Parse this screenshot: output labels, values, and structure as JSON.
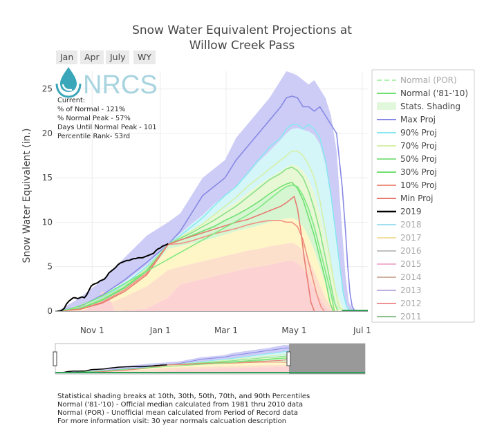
{
  "title_line1": "Snow Water Equivalent Projections at",
  "title_line2": "Willow Creek Pass",
  "range_buttons": [
    "Jan",
    "Apr",
    "July",
    "WY"
  ],
  "logo_text": "NRCS",
  "current_stats": {
    "header": "Current:",
    "pct_normal": "% of Normal - 121%",
    "pct_normal_peak": "% Normal Peak - 57%",
    "days_until_peak": "Days Until Normal Peak - 101",
    "percentile_rank": "Percentile Rank- 53rd"
  },
  "footnotes": [
    "Statistical shading breaks at 10th, 30th, 50th, 70th, and 90th Percentiles",
    "Normal ('81-'10) - Official median calculated from 1981 thru 2010 data",
    "Normal (POR) - Unofficial mean calculated from Period of Record data",
    "For more information visit: 30 year normals calcuation description"
  ],
  "colors": {
    "max": "#8888e6",
    "p90": "#88e8f0",
    "p70": "#d6f0a8",
    "p50": "#88e088",
    "p30": "#70e070",
    "p10": "#f09080",
    "min": "#e87a70",
    "y2019": "#000000",
    "shade_top": "#ccccf6",
    "shade_90": "#d4f6f8",
    "shade_70": "#e8f8d4",
    "shade_50": "#d6f6d2",
    "shade_30": "#fff6c8",
    "shade_10": "#fde0cc",
    "shade_min": "#fcd2d2"
  },
  "chart_data": {
    "type": "line",
    "title": "Snow Water Equivalent Projections at Willow Creek Pass",
    "xlabel": "",
    "ylabel": "Snow Water Equivalent (in.)",
    "x_unit": "days since Oct 1 (water year day)",
    "x_ticks": [
      {
        "day": 31,
        "label": "Nov 1"
      },
      {
        "day": 92,
        "label": "Jan 1"
      },
      {
        "day": 151,
        "label": "Mar 1"
      },
      {
        "day": 212,
        "label": "May 1"
      },
      {
        "day": 273,
        "label": "Jul 1"
      }
    ],
    "y_ticks": [
      0,
      5,
      10,
      15,
      20,
      25
    ],
    "xlim": [
      -2,
      278
    ],
    "ylim": [
      0,
      27
    ],
    "grid": true,
    "legend_position": "right",
    "legend": [
      "Normal (POR)",
      "Normal ('81-'10)",
      "Stats. Shading",
      "Max Proj",
      "90% Proj",
      "70% Proj",
      "50% Proj",
      "30% Proj",
      "10% Proj",
      "Min Proj",
      "2019",
      "2018",
      "2017",
      "2016",
      "2015",
      "2014",
      "2013",
      "2012",
      "2011"
    ],
    "legend_colors": [
      "#b0f0b0",
      "#70e070",
      "#e0f8e0",
      "#8888e6",
      "#88e8f0",
      "#d6f0a8",
      "#88e088",
      "#70e070",
      "#f09080",
      "#e87a70",
      "#000000",
      "#a0e0f0",
      "#f0e0a0",
      "#c0c0c0",
      "#f0b0d0",
      "#d0b0a0",
      "#c0b0e0",
      "#f09090",
      "#90c090"
    ],
    "legend_dimmed": [
      true,
      false,
      false,
      false,
      false,
      false,
      false,
      false,
      false,
      false,
      false,
      true,
      true,
      true,
      true,
      true,
      true,
      true,
      true
    ],
    "series": [
      {
        "name": "Max Proj",
        "x": [
          0,
          20,
          40,
          60,
          80,
          99,
          110,
          120,
          130,
          140,
          150,
          160,
          170,
          180,
          190,
          200,
          205,
          210,
          215,
          220,
          225,
          230,
          235,
          240,
          245,
          250,
          255,
          258,
          260,
          262,
          264,
          266,
          268,
          270
        ],
        "y": [
          0,
          0.5,
          1.8,
          3.5,
          5.5,
          7.5,
          9,
          11,
          13,
          14,
          15,
          17,
          18.5,
          20,
          21.5,
          23,
          24,
          24.2,
          24,
          23,
          23,
          22.5,
          23,
          22,
          21,
          20,
          14,
          9,
          5,
          2,
          0.5,
          0.1,
          0,
          0
        ]
      },
      {
        "name": "90% Proj",
        "x": [
          0,
          20,
          40,
          60,
          80,
          99,
          110,
          120,
          130,
          140,
          150,
          160,
          170,
          180,
          190,
          200,
          205,
          210,
          215,
          220,
          225,
          230,
          235,
          240,
          245,
          250,
          253,
          256,
          259,
          262,
          266
        ],
        "y": [
          0,
          0.4,
          1.5,
          3,
          5,
          7.5,
          8.5,
          9.5,
          10.5,
          11.8,
          13,
          14,
          15.5,
          17,
          18.5,
          19.5,
          20.5,
          21,
          21,
          20.5,
          21,
          20.5,
          19.5,
          17,
          13,
          8,
          5,
          2,
          0.5,
          0,
          0
        ]
      },
      {
        "name": "70% Proj",
        "x": [
          0,
          20,
          40,
          60,
          80,
          99,
          110,
          120,
          130,
          140,
          150,
          160,
          170,
          180,
          190,
          200,
          205,
          210,
          215,
          220,
          225,
          230,
          235,
          240,
          244,
          248,
          252,
          256
        ],
        "y": [
          0,
          0.4,
          1.4,
          2.8,
          4.8,
          7.5,
          8.3,
          9,
          9.8,
          10.8,
          11.8,
          12.8,
          14,
          15,
          16,
          17,
          17.5,
          18,
          18,
          17.5,
          16.5,
          15,
          12.5,
          9,
          6,
          3,
          0.5,
          0
        ]
      },
      {
        "name": "50% Proj",
        "x": [
          0,
          20,
          40,
          60,
          80,
          99,
          110,
          120,
          130,
          140,
          150,
          160,
          170,
          180,
          190,
          200,
          205,
          210,
          215,
          220,
          225,
          230,
          235,
          240,
          244,
          248,
          251
        ],
        "y": [
          0,
          0.3,
          1.3,
          2.7,
          4.6,
          7.5,
          8.2,
          8.8,
          9.5,
          10.2,
          11,
          11.8,
          12.8,
          13.8,
          14.8,
          15.5,
          16,
          16.2,
          15.8,
          15,
          13.5,
          11.5,
          9,
          6,
          3.5,
          1,
          0
        ]
      },
      {
        "name": "30% Proj",
        "x": [
          0,
          20,
          40,
          60,
          80,
          99,
          110,
          120,
          130,
          140,
          150,
          160,
          170,
          180,
          190,
          200,
          205,
          210,
          215,
          220,
          225,
          230,
          235,
          240,
          244,
          247
        ],
        "y": [
          0,
          0.3,
          1.2,
          2.6,
          4.5,
          7.5,
          8,
          8.5,
          9,
          9.5,
          10.2,
          10.8,
          11.5,
          12.3,
          13.2,
          14,
          14.3,
          14.5,
          13.8,
          12.5,
          10.5,
          8.5,
          6,
          3.5,
          1,
          0
        ]
      },
      {
        "name": "10% Proj",
        "x": [
          0,
          20,
          40,
          60,
          80,
          99,
          110,
          120,
          130,
          140,
          150,
          160,
          170,
          180,
          190,
          200,
          205,
          210,
          215,
          220,
          224,
          228,
          232,
          236,
          239
        ],
        "y": [
          0,
          0.2,
          1,
          2.4,
          4.3,
          7.5,
          7.6,
          7.9,
          8.3,
          8.7,
          9,
          9.3,
          9.7,
          10,
          10.2,
          10.2,
          10,
          10,
          9.5,
          8,
          6,
          4,
          2,
          0.5,
          0
        ]
      },
      {
        "name": "Min Proj",
        "x": [
          0,
          20,
          40,
          60,
          80,
          99,
          110,
          120,
          130,
          140,
          150,
          160,
          170,
          180,
          190,
          200,
          205,
          210,
          212,
          215,
          218,
          221,
          224,
          227,
          230
        ],
        "y": [
          0,
          0.2,
          0.9,
          2.2,
          4.1,
          7.5,
          8,
          8.4,
          8.8,
          9.2,
          9.6,
          10,
          10.3,
          10.8,
          11.3,
          11.8,
          12.2,
          12.7,
          12.9,
          11.5,
          9,
          6,
          3.5,
          1,
          0
        ]
      },
      {
        "name": "Normal ('81-'10)",
        "x": [
          0,
          10,
          20,
          30,
          40,
          50,
          60,
          70,
          80,
          90,
          100,
          110,
          120,
          130,
          140,
          150,
          160,
          170,
          180,
          190,
          200,
          205,
          210,
          215,
          220,
          225,
          230,
          235,
          240,
          245,
          248
        ],
        "y": [
          0,
          0.2,
          0.6,
          1.1,
          1.7,
          2.4,
          3.1,
          3.8,
          4.5,
          5.2,
          5.9,
          6.6,
          7.3,
          8,
          8.7,
          9.4,
          10.1,
          10.8,
          11.6,
          12.6,
          13.6,
          14,
          14.2,
          14,
          13,
          11.5,
          9.5,
          7,
          4.5,
          2,
          0
        ]
      },
      {
        "name": "2019",
        "x": [
          0,
          2,
          4,
          6,
          8,
          10,
          12,
          14,
          16,
          18,
          20,
          22,
          24,
          26,
          28,
          30,
          32,
          34,
          36,
          38,
          40,
          42,
          44,
          46,
          48,
          50,
          52,
          54,
          56,
          58,
          60,
          62,
          64,
          66,
          68,
          70,
          72,
          74,
          76,
          78,
          80,
          82,
          84,
          86,
          88,
          90,
          92,
          94,
          96,
          98,
          99
        ],
        "y": [
          0,
          0,
          0.1,
          0.3,
          0.8,
          1.1,
          1.3,
          1.5,
          1.5,
          1.4,
          1.5,
          1.6,
          1.5,
          1.8,
          2.3,
          2.8,
          3,
          3.1,
          3.2,
          3.4,
          3.5,
          3.6,
          3.9,
          4.3,
          4.5,
          4.7,
          4.9,
          5.2,
          5.4,
          5.5,
          5.6,
          5.7,
          5.7,
          5.8,
          5.9,
          5.9,
          6,
          6,
          6,
          6.1,
          6.2,
          6.3,
          6.4,
          6.5,
          6.8,
          7,
          7.1,
          7.3,
          7.4,
          7.5,
          7.6
        ]
      }
    ],
    "shading": {
      "x": [
        0,
        20,
        40,
        60,
        80,
        99,
        110,
        120,
        130,
        140,
        150,
        160,
        170,
        180,
        190,
        200,
        205,
        210,
        215,
        220,
        225,
        230,
        235,
        240,
        245,
        250,
        255,
        258,
        261,
        264,
        267,
        270
      ],
      "top": [
        0,
        1.5,
        3.5,
        6,
        8.5,
        10,
        11,
        13,
        15,
        16,
        17,
        19.5,
        21,
        22.5,
        24,
        26,
        27,
        26.8,
        26.5,
        26,
        25.5,
        26,
        25,
        24,
        22,
        18,
        9,
        4,
        1,
        0.3,
        0,
        0
      ],
      "p90": [
        0,
        0.5,
        1.8,
        3.3,
        5.2,
        7.6,
        8.7,
        9.8,
        10.8,
        12,
        13,
        14,
        15.3,
        16.8,
        18,
        19.3,
        20,
        20.5,
        20.6,
        20.4,
        20.2,
        19.8,
        18.8,
        16.5,
        12.5,
        7.5,
        3,
        1,
        0.2,
        0,
        0,
        0
      ],
      "p70": [
        0,
        0.4,
        1.5,
        3,
        5,
        7.6,
        8.4,
        9.1,
        9.9,
        10.7,
        11.5,
        12.3,
        13.3,
        14.2,
        15,
        15.8,
        16.2,
        16.5,
        16.3,
        15.8,
        14.8,
        13.3,
        11,
        8,
        5,
        2,
        0.5,
        0,
        0,
        0,
        0,
        0
      ],
      "p50": [
        0,
        0.3,
        1.3,
        2.8,
        4.7,
        7.6,
        8.1,
        8.6,
        9.2,
        9.7,
        10.3,
        10.9,
        11.6,
        12.3,
        13,
        13.7,
        14,
        14.2,
        13.8,
        13,
        11.6,
        9.8,
        7.5,
        5,
        2.8,
        0.8,
        0,
        0,
        0,
        0,
        0,
        0
      ],
      "p30": [
        0,
        0.2,
        1,
        2.4,
        4.2,
        7,
        7.3,
        7.6,
        7.9,
        8.2,
        8.6,
        9,
        9.3,
        9.6,
        10,
        10.3,
        10.4,
        10.5,
        10.2,
        9.5,
        8.3,
        6.8,
        5,
        3,
        1.2,
        0.2,
        0,
        0,
        0,
        0,
        0,
        0
      ],
      "p10": [
        0,
        0.1,
        0.6,
        1.6,
        2.8,
        4.6,
        5,
        5.3,
        5.6,
        5.9,
        6.2,
        6.5,
        6.8,
        7,
        7.3,
        7.5,
        7.6,
        7.7,
        7.4,
        6.8,
        5.8,
        4.5,
        3,
        1.5,
        0.5,
        0,
        0,
        0,
        0,
        0,
        0,
        0
      ],
      "minTop": [
        0,
        0,
        0,
        0,
        0.3,
        1.5,
        3,
        3.3,
        3.6,
        3.9,
        4.2,
        4.5,
        4.8,
        5,
        5.2,
        5.5,
        5.6,
        5.7,
        5.4,
        4.8,
        3.8,
        2.6,
        1.5,
        0.5,
        0,
        0,
        0,
        0,
        0,
        0,
        0,
        0
      ]
    },
    "min_band": {
      "x": [
        0,
        5,
        10,
        20,
        25,
        35,
        40,
        45,
        48,
        51
      ],
      "y": [
        0,
        0,
        0,
        0,
        0.1,
        1,
        2.2,
        2.1,
        1,
        0
      ]
    }
  }
}
